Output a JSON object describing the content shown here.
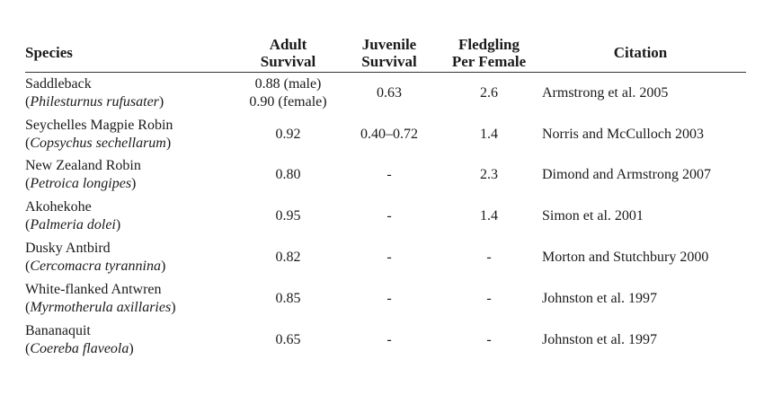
{
  "table": {
    "headers": {
      "species": "Species",
      "adult_line1": "Adult",
      "adult_line2": "Survival",
      "juvenile_line1": "Juvenile",
      "juvenile_line2": "Survival",
      "fledgling_line1": "Fledgling",
      "fledgling_line2": "Per Female",
      "citation": "Citation"
    },
    "rows": [
      {
        "common": "Saddleback",
        "scientific": "Philesturnus rufusater",
        "adult_line1": "0.88 (male)",
        "adult_line2": "0.90 (female)",
        "juvenile": "0.63",
        "fledgling": "2.6",
        "citation": "Armstrong et al. 2005"
      },
      {
        "common": "Seychelles Magpie Robin",
        "scientific": "Copsychus sechellarum",
        "adult_line1": "0.92",
        "adult_line2": "",
        "juvenile": "0.40–0.72",
        "fledgling": "1.4",
        "citation": "Norris and McCulloch 2003"
      },
      {
        "common": "New Zealand Robin",
        "scientific": "Petroica longipes",
        "adult_line1": "0.80",
        "adult_line2": "",
        "juvenile": "-",
        "fledgling": "2.3",
        "citation": "Dimond and Armstrong 2007"
      },
      {
        "common": "Akohekohe",
        "scientific": "Palmeria dolei",
        "adult_line1": "0.95",
        "adult_line2": "",
        "juvenile": "-",
        "fledgling": "1.4",
        "citation": "Simon et al. 2001"
      },
      {
        "common": "Dusky Antbird",
        "scientific": "Cercomacra tyrannina",
        "adult_line1": "0.82",
        "adult_line2": "",
        "juvenile": "-",
        "fledgling": "-",
        "citation": "Morton and Stutchbury 2000"
      },
      {
        "common": "White-flanked Antwren",
        "scientific": "Myrmotherula axillaries",
        "adult_line1": "0.85",
        "adult_line2": "",
        "juvenile": "-",
        "fledgling": "-",
        "citation": "Johnston et al. 1997"
      },
      {
        "common": "Bananaquit",
        "scientific": "Coereba flaveola",
        "adult_line1": "0.65",
        "adult_line2": "",
        "juvenile": "-",
        "fledgling": "-",
        "citation": "Johnston et al. 1997"
      }
    ]
  }
}
